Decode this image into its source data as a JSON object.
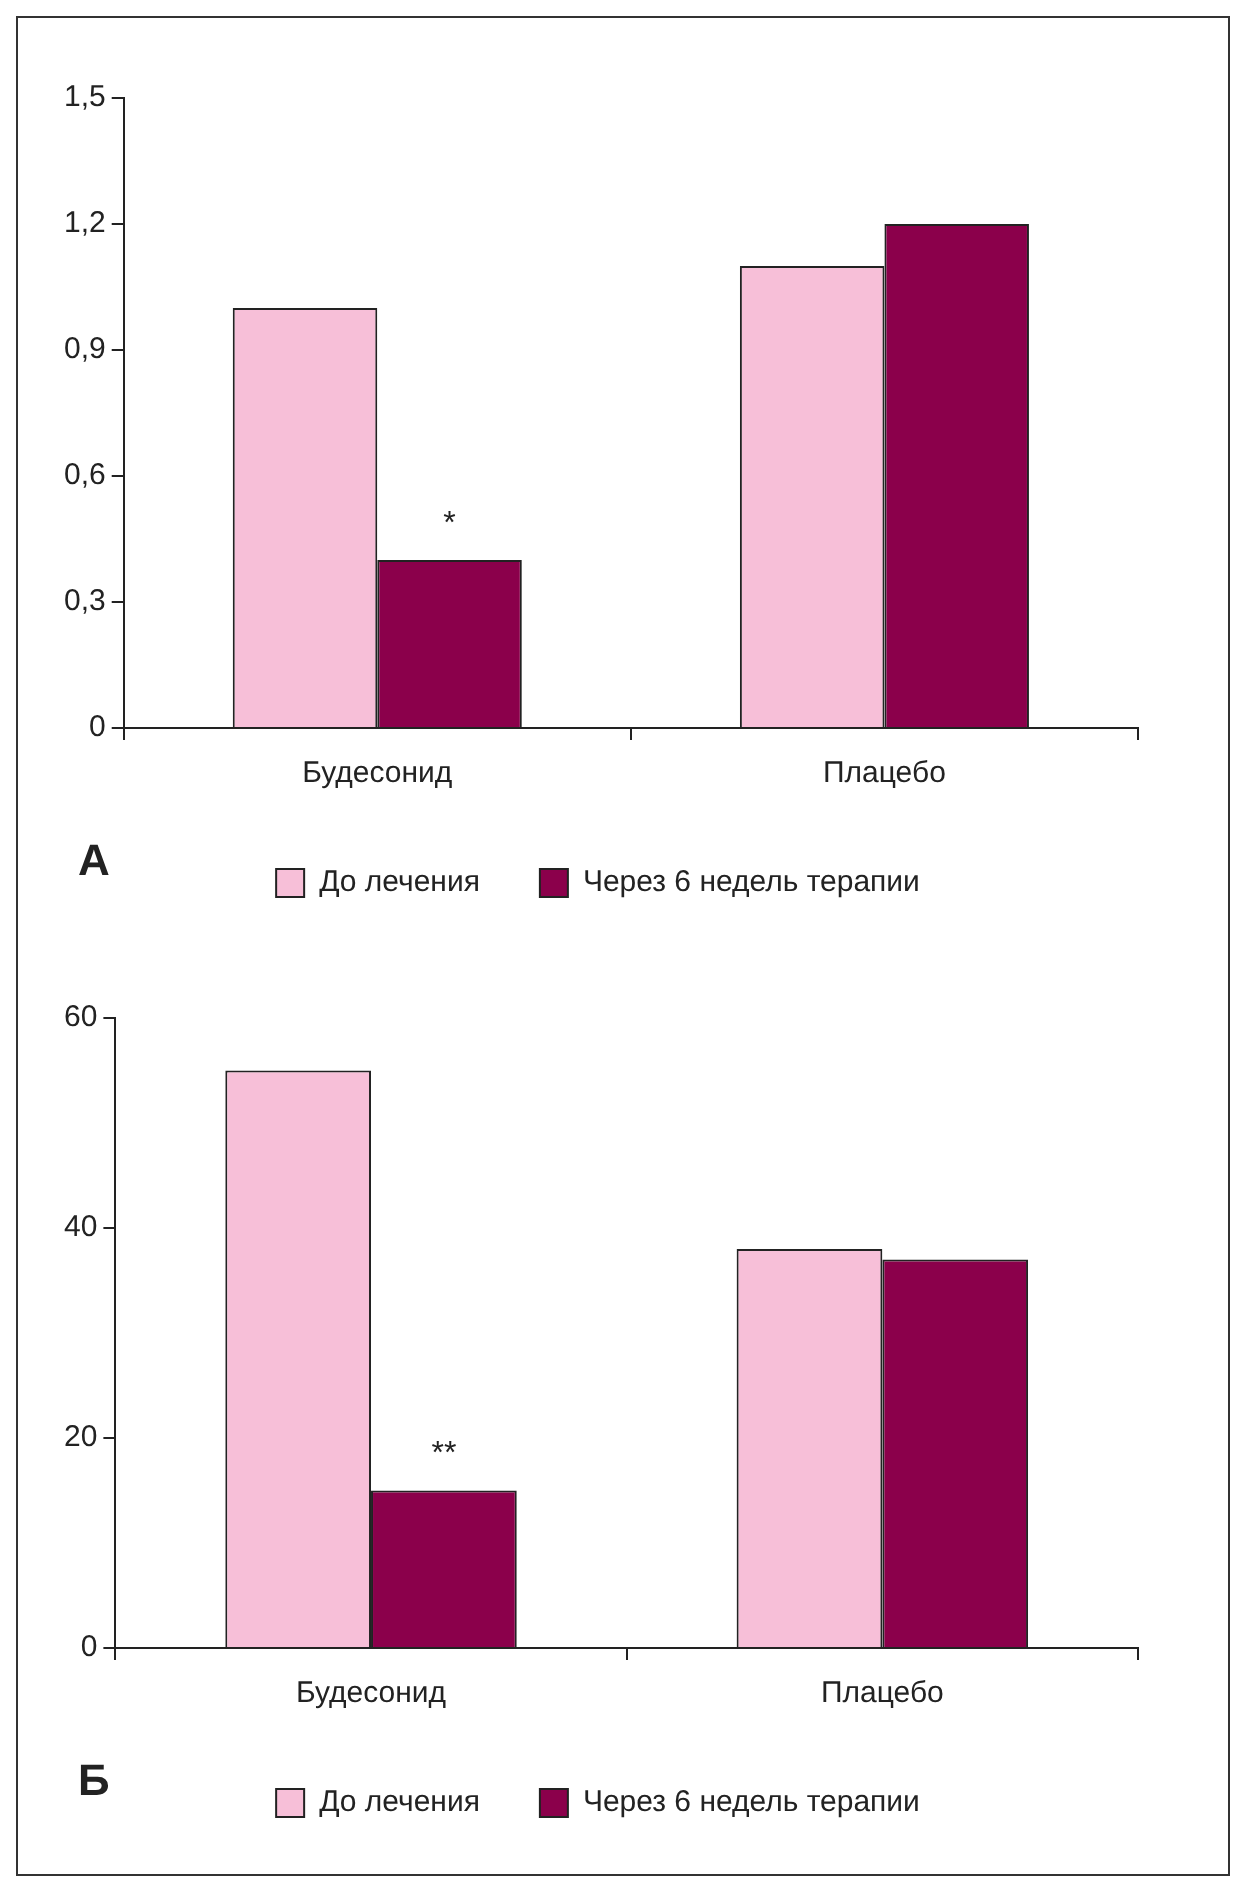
{
  "chart_data": [
    {
      "type": "bar",
      "categories": [
        "Будесонид",
        "Плацебо"
      ],
      "series": [
        {
          "name": "До лечения",
          "color": "#f7bfd8",
          "values": [
            1.0,
            1.1
          ]
        },
        {
          "name": "Через 6 недель терапии",
          "color": "#8b004b",
          "values": [
            0.4,
            1.2
          ]
        }
      ],
      "ylim": [
        0,
        1.5
      ],
      "yticks": [
        0,
        {
          "value": 0.3,
          "label": "0,3"
        },
        {
          "value": 0.6,
          "label": "0,6"
        },
        {
          "value": 0.9,
          "label": "0,9"
        },
        {
          "value": 1.2,
          "label": "1,2"
        },
        {
          "value": 1.5,
          "label": "1,5"
        }
      ],
      "grid": false,
      "legend": "bottom",
      "annotations": [
        "А",
        {
          "text": "*",
          "x": "Будесонид",
          "y": 0.4
        }
      ]
    },
    {
      "type": "bar",
      "categories": [
        "Будесонид",
        "Плацебо"
      ],
      "series": [
        {
          "name": "До лечения",
          "color": "#f7bfd8",
          "values": [
            55,
            38
          ]
        },
        {
          "name": "Через 6 недель терапии",
          "color": "#8b004b",
          "values": [
            15,
            37
          ]
        }
      ],
      "ylim": [
        0,
        60
      ],
      "yticks": [
        0,
        20,
        40,
        60
      ],
      "grid": false,
      "legend": "bottom",
      "annotations": [
        "Б",
        {
          "text": "**",
          "x": "Будесонид",
          "y": 15
        }
      ]
    }
  ]
}
